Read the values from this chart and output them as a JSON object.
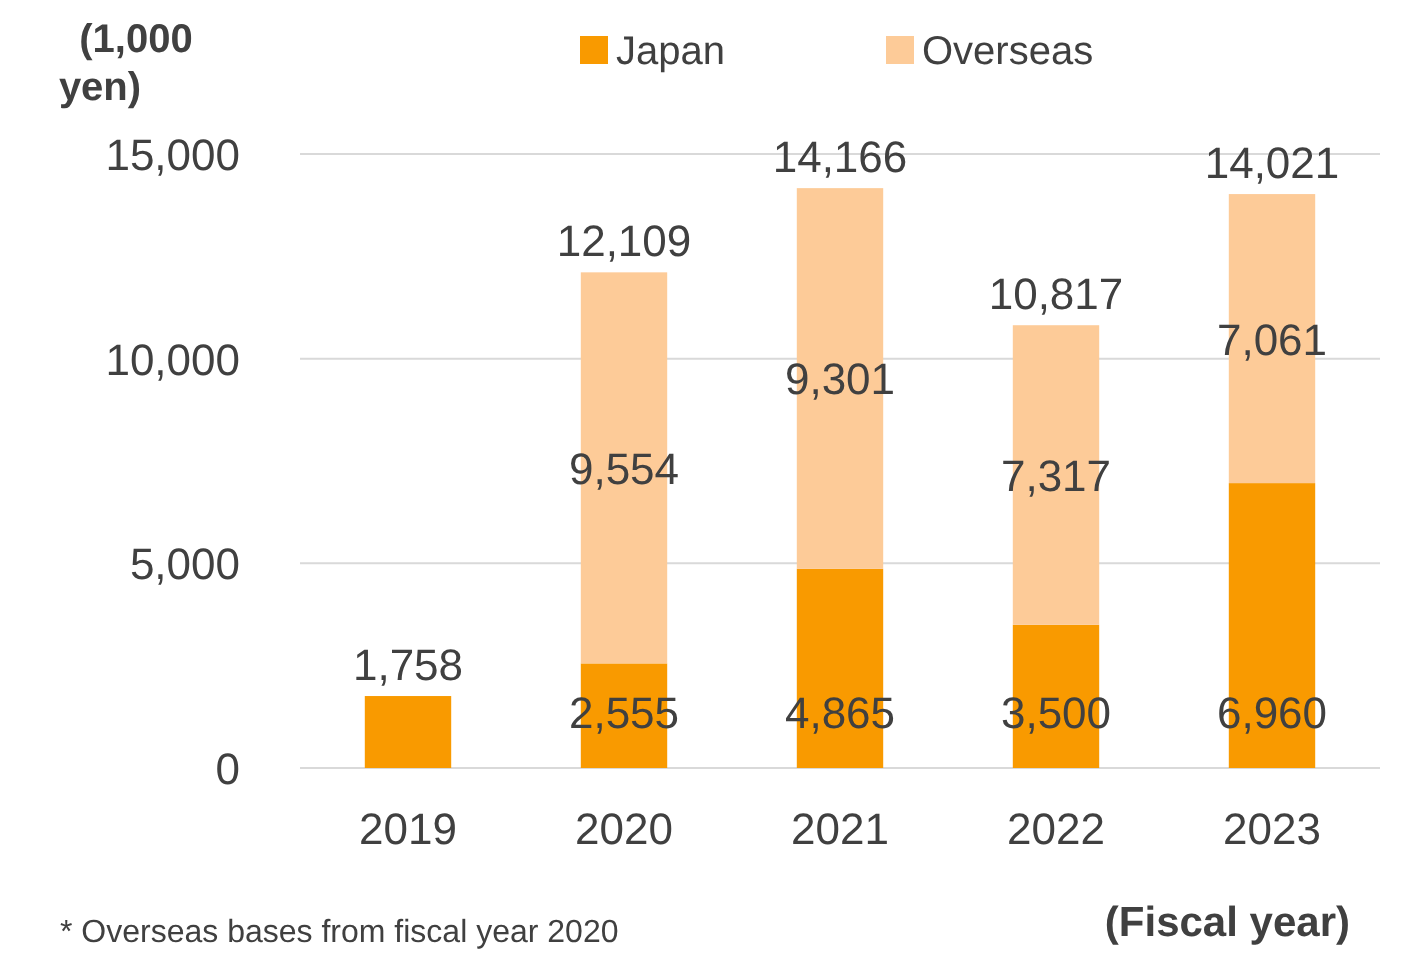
{
  "chart_data": {
    "type": "bar",
    "stacked": true,
    "ylabel": "(1,000 yen)",
    "xlabel": "(Fiscal year)",
    "categories": [
      "2019",
      "2020",
      "2021",
      "2022",
      "2023"
    ],
    "series": [
      {
        "name": "Japan",
        "color": "#f99a00",
        "values": [
          1758,
          2555,
          4865,
          3500,
          6960
        ],
        "value_labels": [
          null,
          "2,555",
          "4,865",
          "3,500",
          "6,960"
        ]
      },
      {
        "name": "Overseas",
        "color": "#fdcb98",
        "values": [
          null,
          9554,
          9301,
          7317,
          7061
        ],
        "value_labels": [
          null,
          "9,554",
          "9,301",
          "7,317",
          "7,061"
        ]
      }
    ],
    "totals": [
      "1,758",
      "12,109",
      "14,166",
      "10,817",
      "14,021"
    ],
    "ylim": [
      0,
      15000
    ],
    "yticks": [
      {
        "value": 0,
        "label": "0"
      },
      {
        "value": 5000,
        "label": "5,000"
      },
      {
        "value": 10000,
        "label": "10,000"
      },
      {
        "value": 15000,
        "label": "15,000"
      }
    ],
    "grid": "y",
    "legend": "top",
    "annotations": [
      "* Overseas bases from fiscal year 2020"
    ]
  }
}
